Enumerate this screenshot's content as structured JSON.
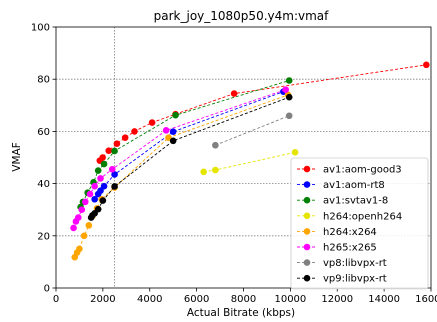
{
  "chart_data": {
    "type": "line",
    "title": "park_joy_1080p50.y4m:vmaf",
    "xlabel": "Actual Bitrate (kbps)",
    "ylabel": "VMAF",
    "xlim": [
      0,
      16000
    ],
    "ylim": [
      0,
      100
    ],
    "xticks": [
      0,
      2000,
      4000,
      6000,
      8000,
      10000,
      12000,
      14000,
      16000
    ],
    "yticks": [
      0,
      20,
      40,
      60,
      80,
      100
    ],
    "grid": true,
    "grid_lines": {
      "x": [
        2500
      ],
      "y": [
        20,
        40,
        60,
        80
      ]
    },
    "legend_position": "lower-right",
    "series": [
      {
        "name": "av1:aom-good3",
        "color": "#ff0000",
        "x": [
          1870,
          1990,
          2250,
          2600,
          2950,
          3350,
          4100,
          5100,
          7600,
          15800
        ],
        "y": [
          48.8,
          50.0,
          52.6,
          55.3,
          57.6,
          60.0,
          63.4,
          66.6,
          74.5,
          85.5
        ]
      },
      {
        "name": "av1:aom-rt8",
        "color": "#0000ff",
        "x": [
          1650,
          1800,
          1900,
          2050,
          2500,
          5000,
          9700
        ],
        "y": [
          34.0,
          36.0,
          37.3,
          39.0,
          43.5,
          59.9,
          75.2
        ]
      },
      {
        "name": "av1:svtav1-8",
        "color": "#008000",
        "x": [
          1050,
          1150,
          1350,
          1600,
          1800,
          2050,
          2500,
          5100,
          9950
        ],
        "y": [
          31.0,
          33.0,
          36.5,
          40.5,
          45.0,
          47.5,
          52.5,
          66.2,
          79.5
        ]
      },
      {
        "name": "h264:openh264",
        "color": "#e5e500",
        "x": [
          6300,
          6800,
          10200
        ],
        "y": [
          44.5,
          45.2,
          52.0
        ]
      },
      {
        "name": "h264:x264",
        "color": "#ffa500",
        "x": [
          800,
          900,
          1000,
          1200,
          1400,
          1550,
          1750,
          1950,
          2500,
          4800,
          9900
        ],
        "y": [
          11.8,
          13.6,
          15.0,
          20.0,
          24.0,
          27.5,
          30.5,
          34.0,
          38.5,
          57.6,
          74.0
        ]
      },
      {
        "name": "h265:x265",
        "color": "#ff00ff",
        "x": [
          750,
          850,
          950,
          1100,
          1250,
          1450,
          1650,
          1900,
          2400,
          4700,
          9800
        ],
        "y": [
          23.0,
          25.5,
          27.0,
          30.0,
          33.0,
          36.0,
          39.0,
          42.0,
          45.5,
          60.4,
          76.0
        ]
      },
      {
        "name": "vp8:libvpx-rt",
        "color": "#808080",
        "x": [
          6800,
          9950
        ],
        "y": [
          54.7,
          66.0
        ]
      },
      {
        "name": "vp9:libvpx-rt",
        "color": "#000000",
        "x": [
          1500,
          1550,
          1650,
          1800,
          2000,
          2500,
          5000,
          9950
        ],
        "y": [
          27.0,
          27.8,
          28.6,
          30.2,
          33.5,
          38.9,
          56.4,
          73.1
        ]
      }
    ]
  }
}
